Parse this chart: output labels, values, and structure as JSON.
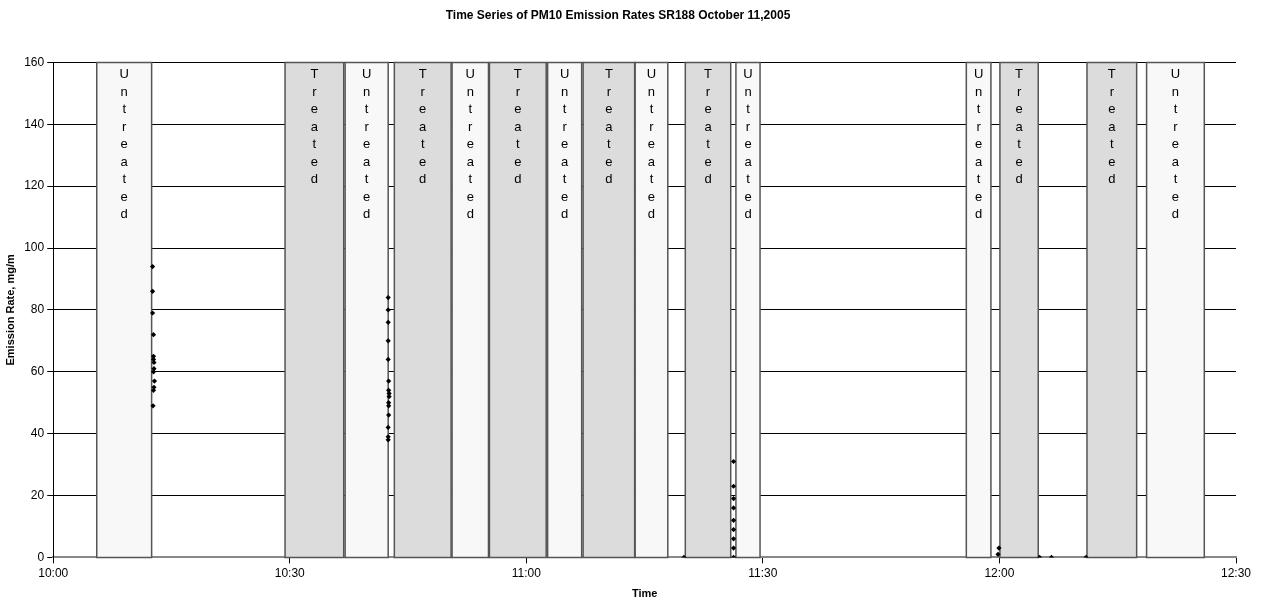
{
  "chart_data": {
    "type": "scatter",
    "title": "Time Series of PM10 Emission Rates SR188 October 11,2005",
    "xlabel": "Time",
    "ylabel": "Emission Rate, mg/m",
    "xlim": [
      10,
      12.5
    ],
    "xticks": [
      {
        "value": 10,
        "label": "10:00"
      },
      {
        "value": 10.5,
        "label": "10:30"
      },
      {
        "value": 11,
        "label": "11:00"
      },
      {
        "value": 11.5,
        "label": "11:30"
      },
      {
        "value": 12,
        "label": "12:00"
      },
      {
        "value": 12.5,
        "label": "12:30"
      }
    ],
    "ylim": [
      0,
      160
    ],
    "yticks": [
      0,
      20,
      40,
      60,
      80,
      100,
      120,
      140,
      160
    ],
    "grid": "y",
    "legend": false,
    "marker": "diamond",
    "series": [
      {
        "color": "#000000",
        "x": [
          10.21,
          10.21,
          10.21,
          10.212,
          10.212,
          10.212,
          10.213,
          10.213,
          10.212,
          10.214,
          10.213,
          10.212,
          10.211,
          10.708,
          10.708,
          10.708,
          10.708,
          10.708,
          10.709,
          10.709,
          10.71,
          10.71,
          10.709,
          10.709,
          10.709,
          10.708,
          10.708,
          10.708,
          11.333,
          11.438,
          11.438,
          11.438,
          11.438,
          11.438,
          11.438,
          11.438,
          11.438,
          11.438,
          11.997,
          11.999,
          12.085,
          12.11,
          12.183
        ],
        "values": [
          94,
          86,
          79,
          72,
          65,
          64,
          63,
          61,
          60,
          57,
          55,
          54,
          49,
          84,
          80,
          76,
          70,
          64,
          57,
          54,
          53,
          52,
          50,
          49,
          46,
          42,
          39,
          38,
          0,
          31,
          23,
          19,
          16,
          12,
          9,
          6,
          3,
          0,
          1,
          3,
          0,
          0,
          0
        ]
      }
    ],
    "bands": [
      {
        "axis": "x",
        "from": 10.092,
        "to": 10.208,
        "label": "Untreated",
        "color": "#f8f8f8"
      },
      {
        "axis": "x",
        "from": 10.49,
        "to": 10.614,
        "label": "Treated",
        "color": "#dcdcdc"
      },
      {
        "axis": "x",
        "from": 10.617,
        "to": 10.708,
        "label": "Untreated",
        "color": "#f8f8f8"
      },
      {
        "axis": "x",
        "from": 10.721,
        "to": 10.841,
        "label": "Treated",
        "color": "#dcdcdc"
      },
      {
        "axis": "x",
        "from": 10.843,
        "to": 10.92,
        "label": "Untreated",
        "color": "#f8f8f8"
      },
      {
        "axis": "x",
        "from": 10.922,
        "to": 11.042,
        "label": "Treated",
        "color": "#dcdcdc"
      },
      {
        "axis": "x",
        "from": 11.045,
        "to": 11.117,
        "label": "Untreated",
        "color": "#f8f8f8"
      },
      {
        "axis": "x",
        "from": 11.12,
        "to": 11.229,
        "label": "Treated",
        "color": "#dcdcdc"
      },
      {
        "axis": "x",
        "from": 11.23,
        "to": 11.299,
        "label": "Untreated",
        "color": "#f8f8f8"
      },
      {
        "axis": "x",
        "from": 11.336,
        "to": 11.432,
        "label": "Treated",
        "color": "#dcdcdc"
      },
      {
        "axis": "x",
        "from": 11.443,
        "to": 11.494,
        "label": "Untreated",
        "color": "#f8f8f8"
      },
      {
        "axis": "x",
        "from": 11.93,
        "to": 11.982,
        "label": "Untreated",
        "color": "#f8f8f8"
      },
      {
        "axis": "x",
        "from": 12.001,
        "to": 12.082,
        "label": "Treated",
        "color": "#dcdcdc"
      },
      {
        "axis": "x",
        "from": 12.185,
        "to": 12.29,
        "label": "Treated",
        "color": "#dcdcdc"
      },
      {
        "axis": "x",
        "from": 12.311,
        "to": 12.433,
        "label": "Untreated",
        "color": "#f8f8f8"
      }
    ]
  }
}
